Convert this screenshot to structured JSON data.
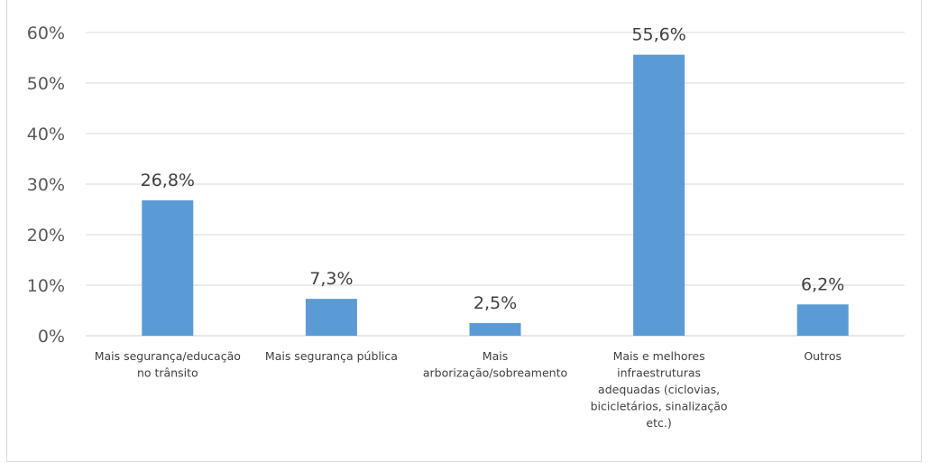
{
  "chart_data": {
    "type": "bar",
    "title": "",
    "xlabel": "",
    "ylabel": "",
    "categories": [
      [
        "Mais segurança/educação",
        "no trânsito"
      ],
      [
        "Mais segurança pública"
      ],
      [
        "Mais",
        "arborização/sobreamento"
      ],
      [
        "Mais e melhores",
        "infraestruturas",
        "adequadas (ciclovias,",
        "bicicletários, sinalização",
        "etc.)"
      ],
      [
        "Outros"
      ]
    ],
    "values": [
      26.8,
      7.3,
      2.5,
      55.6,
      6.2
    ],
    "data_labels": [
      "26,8%",
      "7,3%",
      "2,5%",
      "55,6%",
      "6,2%"
    ],
    "yticks": [
      0,
      10,
      20,
      30,
      40,
      50,
      60
    ],
    "ytick_labels": [
      "0%",
      "10%",
      "20%",
      "30%",
      "40%",
      "50%",
      "60%"
    ],
    "ylim": [
      0,
      60
    ],
    "grid": true,
    "bar_color": "#5b9bd5",
    "grid_color": "#d9d9d9"
  }
}
